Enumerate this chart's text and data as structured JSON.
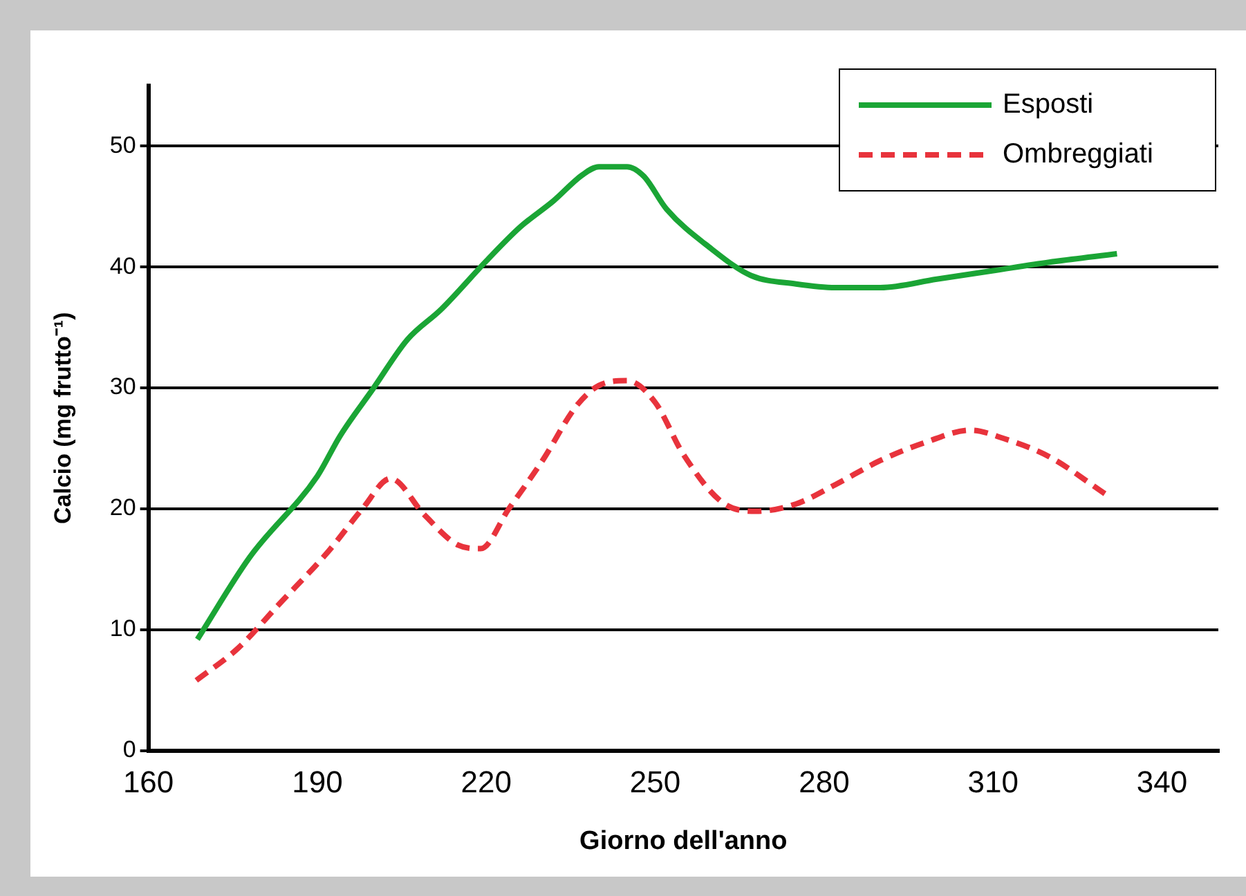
{
  "chart_data": {
    "type": "line",
    "xlabel": "Giorno dell'anno",
    "ylabel": "Calcio (mg frutto⁻¹)",
    "xlim": [
      160,
      350
    ],
    "xticks": [
      160,
      190,
      220,
      250,
      280,
      310,
      340
    ],
    "ylim": [
      0,
      55
    ],
    "yticks": [
      0,
      10,
      20,
      30,
      40,
      50
    ],
    "grid": "y",
    "legend": "top right",
    "marker": "none",
    "series": [
      {
        "name": "Esposti",
        "color": "#1aa535",
        "line_style": "solid",
        "x": [
          168.7,
          178,
          190,
          194,
          200,
          206,
          212,
          220,
          226,
          232,
          237,
          240,
          245,
          248,
          252,
          260,
          267,
          275,
          282,
          290,
          300,
          310,
          320,
          332
        ],
        "values": [
          9.2,
          16,
          22.7,
          26,
          30,
          34,
          36.5,
          40.5,
          43.3,
          45.5,
          47.6,
          48.3,
          48.3,
          47.5,
          44.8,
          41.5,
          39.3,
          38.6,
          38.3,
          38.3,
          39,
          39.7,
          40.4,
          41.1
        ]
      },
      {
        "name": "Ombreggiati",
        "color": "#e8333c",
        "line_style": "dashed",
        "x": [
          168.5,
          176,
          183,
          192,
          198,
          203,
          209,
          215,
          219,
          224,
          230,
          236,
          240,
          245,
          250,
          255,
          262,
          268,
          275,
          282,
          290,
          298,
          306,
          312,
          320,
          330
        ],
        "values": [
          5.8,
          8.5,
          12,
          16.5,
          20,
          22.5,
          19.5,
          17,
          16.7,
          20,
          24,
          28.5,
          30.2,
          30.6,
          28.8,
          24.5,
          20.5,
          19.8,
          20.4,
          22,
          24,
          25.5,
          26.5,
          25.8,
          24.3,
          21.2
        ]
      }
    ]
  }
}
